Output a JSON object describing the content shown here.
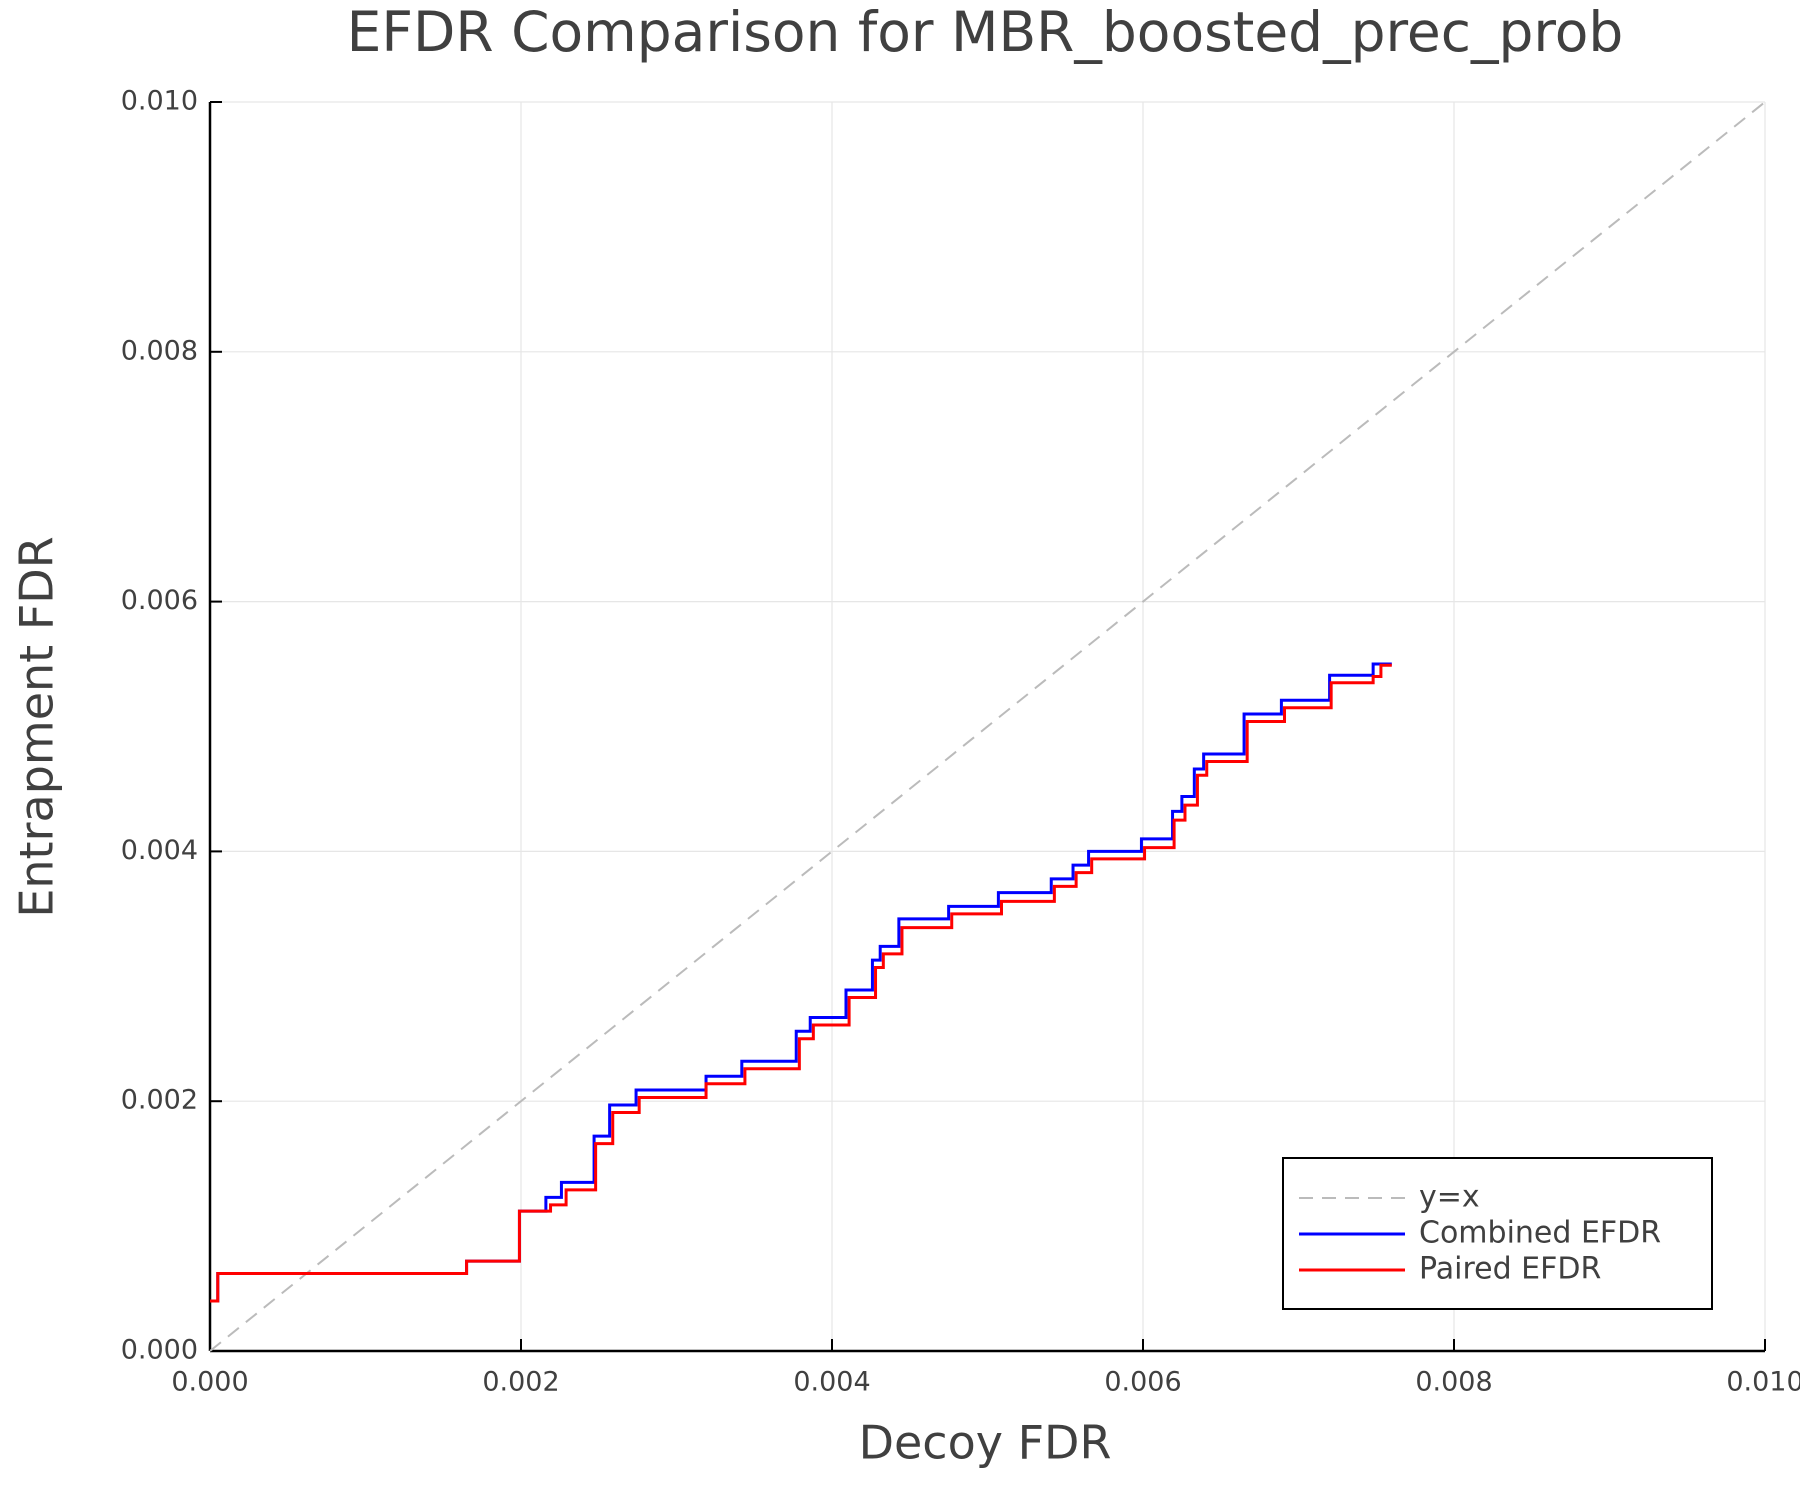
{
  "chart_data": {
    "type": "line",
    "title": "EFDR Comparison for MBR_boosted_prec_prob",
    "xlabel": "Decoy FDR",
    "ylabel": "Entrapment FDR",
    "xlim": [
      0,
      0.01
    ],
    "ylim": [
      0,
      0.01
    ],
    "xticks": [
      {
        "value": 0,
        "label": "0.000"
      },
      {
        "value": 0.002,
        "label": "0.002"
      },
      {
        "value": 0.004,
        "label": "0.004"
      },
      {
        "value": 0.006,
        "label": "0.006"
      },
      {
        "value": 0.008,
        "label": "0.008"
      },
      {
        "value": 0.01,
        "label": "0.010"
      }
    ],
    "yticks": [
      {
        "value": 0,
        "label": "0.000"
      },
      {
        "value": 0.002,
        "label": "0.002"
      },
      {
        "value": 0.004,
        "label": "0.004"
      },
      {
        "value": 0.006,
        "label": "0.006"
      },
      {
        "value": 0.008,
        "label": "0.008"
      },
      {
        "value": 0.01,
        "label": "0.010"
      }
    ],
    "grid": true,
    "legend": "lower right",
    "series": [
      {
        "name": "y=x",
        "color": "#bbbbbb",
        "linestyle": "dashed",
        "step": false,
        "x": [
          0,
          0.01
        ],
        "values": [
          0,
          0.01
        ]
      },
      {
        "name": "Combined EFDR",
        "color": "#0000ff",
        "linestyle": "solid",
        "step": true,
        "x": [
          0,
          5e-05,
          0.00165,
          0.00199,
          0.00216,
          0.00226,
          0.00247,
          0.00257,
          0.00274,
          0.00319,
          0.00342,
          0.00377,
          0.00386,
          0.00409,
          0.00426,
          0.00431,
          0.00443,
          0.00475,
          0.00507,
          0.00541,
          0.00555,
          0.00565,
          0.00599,
          0.00619,
          0.00625,
          0.00633,
          0.00639,
          0.00665,
          0.00689,
          0.0072,
          0.00748,
          0.0076
        ],
        "values": [
          0.0004,
          0.00062,
          0.00072,
          0.00112,
          0.00123,
          0.00135,
          0.00172,
          0.00197,
          0.00209,
          0.0022,
          0.00232,
          0.00256,
          0.00267,
          0.00289,
          0.00313,
          0.00324,
          0.00346,
          0.00356,
          0.00367,
          0.00378,
          0.00389,
          0.004,
          0.0041,
          0.00432,
          0.00444,
          0.00466,
          0.00478,
          0.0051,
          0.00521,
          0.00541,
          0.0055,
          0.0055
        ]
      },
      {
        "name": "Paired EFDR",
        "color": "#ff0000",
        "linestyle": "solid",
        "step": true,
        "x": [
          0,
          5e-05,
          0.00165,
          0.00199,
          0.00219,
          0.00229,
          0.00248,
          0.00259,
          0.00276,
          0.00319,
          0.00344,
          0.00379,
          0.00388,
          0.00411,
          0.00428,
          0.00433,
          0.00445,
          0.00477,
          0.00509,
          0.00543,
          0.00557,
          0.00567,
          0.00601,
          0.0062,
          0.00627,
          0.00635,
          0.00641,
          0.00667,
          0.00691,
          0.00721,
          0.00748,
          0.00753,
          0.0076
        ],
        "values": [
          0.0004,
          0.00062,
          0.00072,
          0.00112,
          0.00117,
          0.00129,
          0.00166,
          0.00191,
          0.00203,
          0.00214,
          0.00226,
          0.0025,
          0.00261,
          0.00283,
          0.00307,
          0.00318,
          0.00339,
          0.0035,
          0.0036,
          0.00372,
          0.00383,
          0.00394,
          0.00403,
          0.00425,
          0.00437,
          0.00461,
          0.00472,
          0.00504,
          0.00515,
          0.00535,
          0.0054,
          0.00549,
          0.00549
        ]
      }
    ]
  }
}
